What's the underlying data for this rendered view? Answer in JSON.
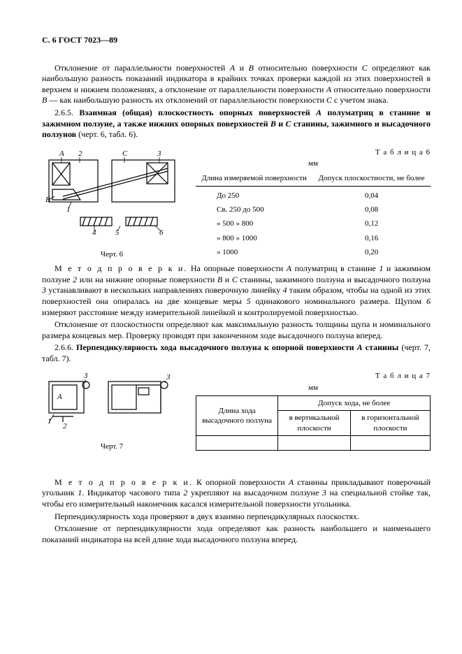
{
  "header": "С. 6 ГОСТ 7023—89",
  "para1": "Отклонение от параллельности поверхностей <span class='italic'>A</span> и <span class='italic'>B</span> относительно поверхности <span class='italic'>C</span> определяют как наибольшую разность показаний индикатора в крайних точках проверки каждой из этих поверхностей в верхнем и нижнем положениях, а отклонение от параллельности поверхности <span class='italic'>A</span> относительно поверхности <span class='italic'>B</span> — как наибольшую разность их отклонений от параллельности поверхности <span class='italic'>C</span> с учетом знака.",
  "sec265_num": "2.6.5. ",
  "sec265_title": "Взаимная (общая) плоскостность опорных поверхностей <span class='italic'>A</span> полуматриц в станине и зажимном ползуне, а также нижних опорных поверхностей <span class='italic'>B</span> и <span class='italic'>C</span> станины, зажимного и высадочного ползунов",
  "sec265_tail": " (черт. 6, табл. 6).",
  "table6_label": "Т а б л и ц а  6",
  "unit": "мм",
  "table6_cols": [
    "Длина измеряемой поверхности",
    "Допуск плоскостности, не более"
  ],
  "table6_rows": [
    [
      "До  250",
      "0,04"
    ],
    [
      "Св. 250 до  500",
      "0,08"
    ],
    [
      "»   500  »   800",
      "0,12"
    ],
    [
      "»   800  »  1000",
      "0,16"
    ],
    [
      "»  1000",
      "0,20"
    ]
  ],
  "fig6_caption": "Черт. 6",
  "method_label": "М е т о д  п р о в е р к и.",
  "method6_text": " На опорные поверхности <span class='italic'>A</span> полуматриц в станине <span class='italic'>1</span> и зажимном ползуне <span class='italic'>2</span> или на нижние опорные поверхности <span class='italic'>B</span> и <span class='italic'>C</span> станины, зажимного ползуна и высадочного ползуна <span class='italic'>3</span> устанавливают в нескольких направлениях поверочную линейку <span class='italic'>4</span> таким образом, чтобы на одной из этих поверхностей она опиралась на две концевые меры <span class='italic'>5</span> одинакового номинального размера. Щупом <span class='italic'>6</span> измеряют расстояние между измерительной линейкой и контролируемой поверхностью.",
  "para_dev6": "Отклонение от плоскостности определяют как максимальную разность толщины щупа и номинального размера концевых мер. Проверку проводят при законченном ходе высадочного ползуна вперед.",
  "sec266_num": "2.6.6. ",
  "sec266_title": "Перпендикулярность хода высадочного ползуна к опорной поверхности <span class='italic'>A</span> станины",
  "sec266_tail": " (черт. 7, табл. 7).",
  "table7_label": "Т а б л и ц а  7",
  "table7_col1": "Длина хода высадочного ползуна",
  "table7_colspan": "Допуск хода, не более",
  "table7_sub1": "в вертикальной плоскости",
  "table7_sub2": "в горизонтальной плоскости",
  "fig7_caption": "Черт. 7",
  "method7_text": " К опорной поверхности <span class='italic'>A</span> станины прикладывают поверочный угольник <span class='italic'>1</span>. Индикатор часового типа <span class='italic'>2</span> укрепляют на высадочном ползуне <span class='italic'>3</span> на специальной стойке так, чтобы его измерительный наконечник касался измерительной поверхности угольника.",
  "para_perp": "Перпендикулярность хода проверяют в двух взаимно перпендикулярных плоскостях.",
  "para_perp2": "Отклонение от перпендикулярности хода определяют как разность наибольшего и наименьшего показаний индикатора на всей длине хода высадочного ползуна вперед."
}
